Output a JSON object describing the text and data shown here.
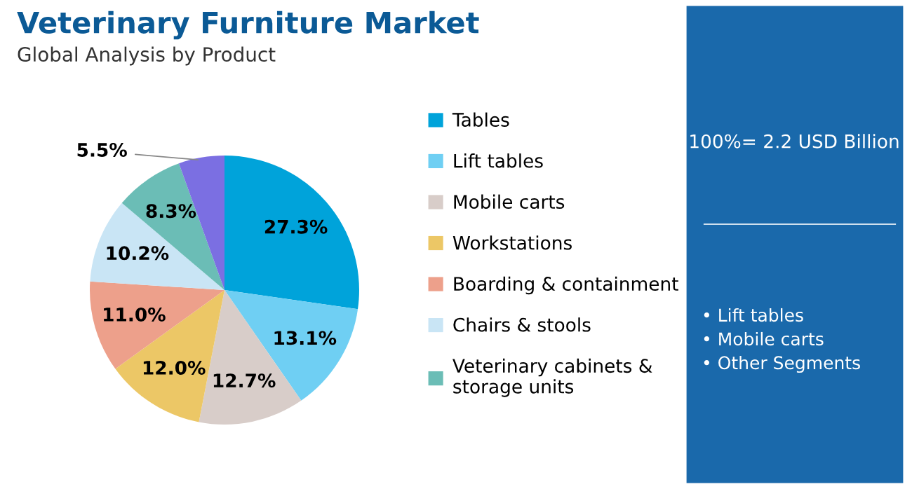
{
  "chart_data": {
    "type": "pie",
    "title": "Veterinary Furniture Market",
    "subtitle": "Global Analysis by Product",
    "categories": [
      "Tables",
      "Lift tables",
      "Mobile carts",
      "Workstations",
      "Boarding & containment",
      "Chairs & stools",
      "Veterinary cabinets &\nstorage units",
      null
    ],
    "values": [
      27.3,
      13.1,
      12.7,
      12.0,
      11.0,
      10.2,
      8.3,
      5.5
    ],
    "value_labels": [
      "27.3%",
      "13.1%",
      "12.7%",
      "12.0%",
      "11.0%",
      "10.2%",
      "8.3%",
      "5.5%"
    ],
    "colors": [
      "#00a3da",
      "#6fcff3",
      "#d8cdc9",
      "#ecc766",
      "#eda08b",
      "#c9e5f5",
      "#6bbdb6",
      "#7b6fe2"
    ],
    "legend": "right",
    "annotations": [
      "100%= 2.2 USD Billion",
      "• Lift tables",
      "• Mobile carts",
      "• Other Segments"
    ]
  }
}
